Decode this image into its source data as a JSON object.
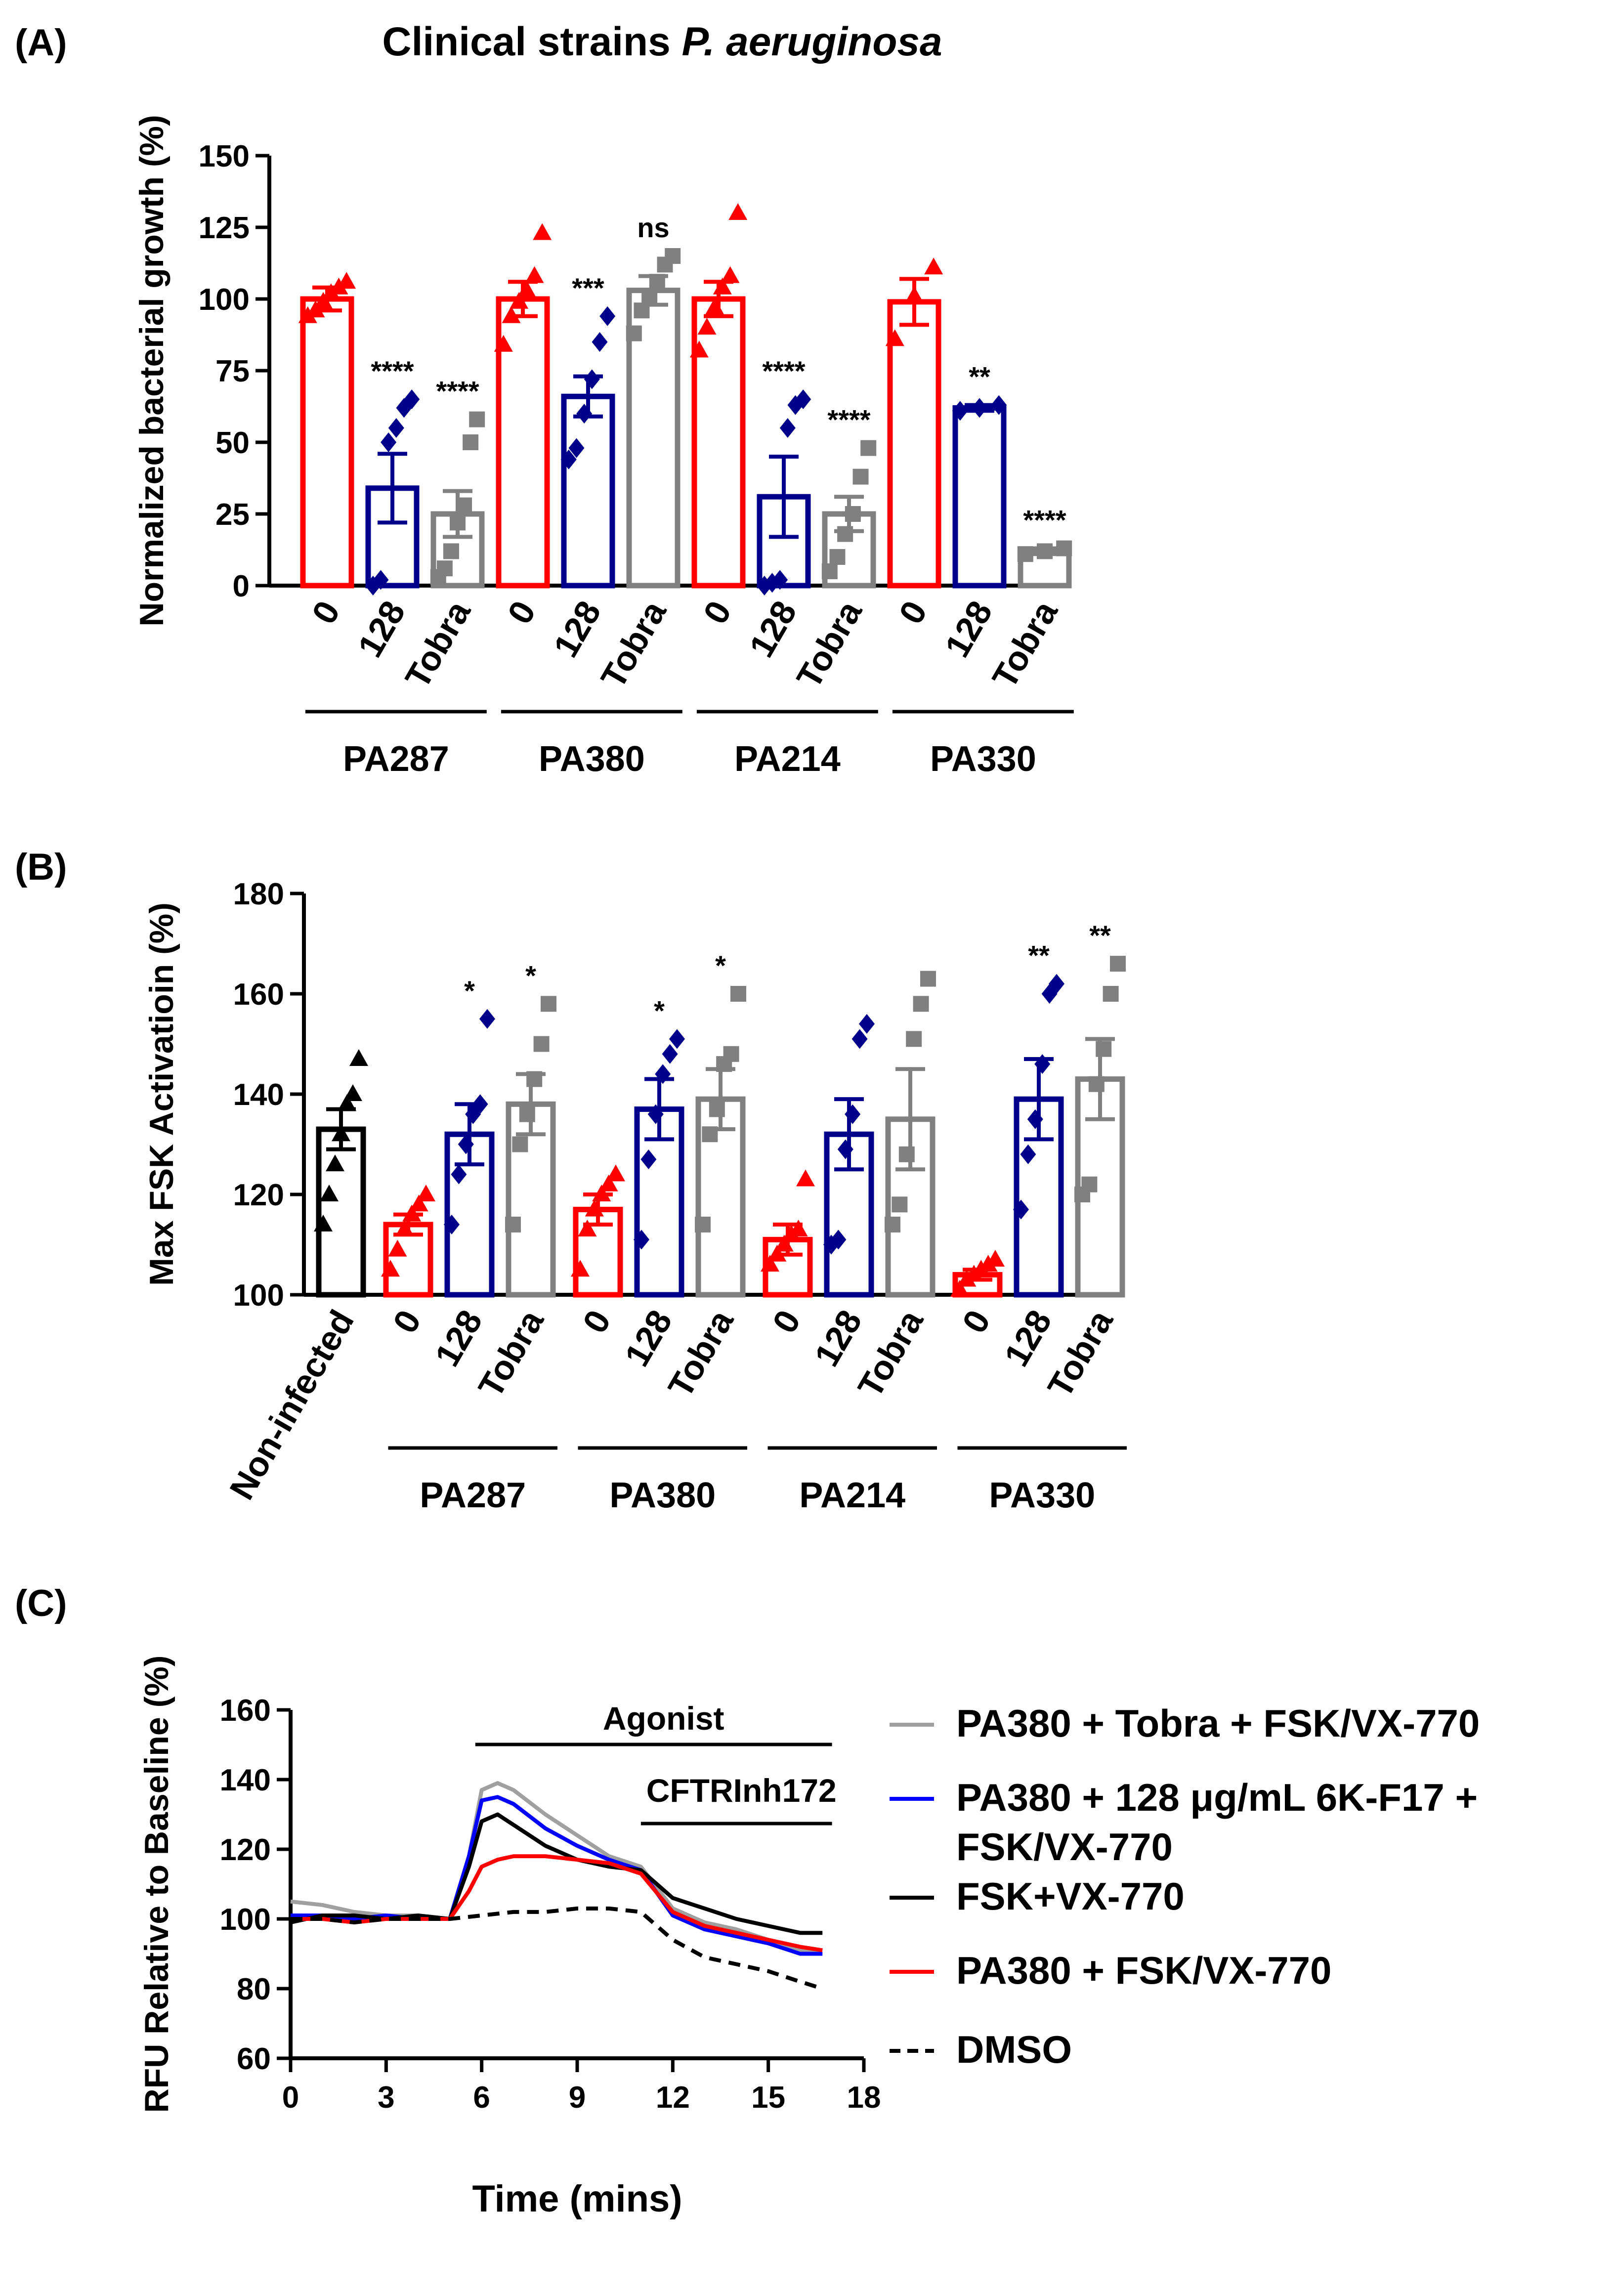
{
  "chart_data": [
    {
      "panel": "(A)",
      "type": "bar",
      "title_plain": "Clinical strains ",
      "title_italic": "P. aeruginosa",
      "ylabel": "Normalized bacterial growth (%)",
      "ylim": [
        0,
        150
      ],
      "yticks": [
        0,
        25,
        50,
        75,
        100,
        125,
        150
      ],
      "groups": [
        {
          "label": "PA287",
          "bars": [
            {
              "label": "0",
              "color": "#ff0000",
              "marker": "triangle",
              "mean": 100,
              "sem": 4,
              "points": [
                94,
                96,
                99,
                102,
                104,
                106
              ],
              "sig": ""
            },
            {
              "label": "128",
              "color": "#00008b",
              "marker": "diamond",
              "mean": 34,
              "sem": 12,
              "points": [
                0,
                2,
                50,
                55,
                62,
                65
              ],
              "sig": "****"
            },
            {
              "label": "Tobra",
              "color": "#808080",
              "marker": "square",
              "mean": 25,
              "sem": 8,
              "points": [
                3,
                6,
                12,
                22,
                28,
                50,
                58
              ],
              "sig": "****"
            }
          ]
        },
        {
          "label": "PA380",
          "bars": [
            {
              "label": "0",
              "color": "#ff0000",
              "marker": "triangle",
              "mean": 100,
              "sem": 6,
              "points": [
                84,
                94,
                99,
                103,
                108,
                123
              ],
              "sig": ""
            },
            {
              "label": "128",
              "color": "#00008b",
              "marker": "diamond",
              "mean": 66,
              "sem": 7,
              "points": [
                44,
                48,
                60,
                72,
                85,
                94
              ],
              "sig": "***"
            },
            {
              "label": "Tobra",
              "color": "#808080",
              "marker": "square",
              "mean": 103,
              "sem": 5,
              "points": [
                88,
                96,
                101,
                106,
                112,
                115
              ],
              "sig": "ns"
            }
          ]
        },
        {
          "label": "PA214",
          "bars": [
            {
              "label": "0",
              "color": "#ff0000",
              "marker": "triangle",
              "mean": 100,
              "sem": 6,
              "points": [
                82,
                90,
                97,
                104,
                108,
                130
              ],
              "sig": ""
            },
            {
              "label": "128",
              "color": "#00008b",
              "marker": "diamond",
              "mean": 31,
              "sem": 14,
              "points": [
                0,
                1,
                2,
                55,
                63,
                65
              ],
              "sig": "****"
            },
            {
              "label": "Tobra",
              "color": "#808080",
              "marker": "square",
              "mean": 25,
              "sem": 6,
              "points": [
                5,
                10,
                18,
                25,
                38,
                48
              ],
              "sig": "****"
            }
          ]
        },
        {
          "label": "PA330",
          "bars": [
            {
              "label": "0",
              "color": "#ff0000",
              "marker": "triangle",
              "mean": 99,
              "sem": 8,
              "points": [
                86,
                101,
                111
              ],
              "sig": ""
            },
            {
              "label": "128",
              "color": "#00008b",
              "marker": "diamond",
              "mean": 62,
              "sem": 1,
              "points": [
                61,
                62,
                63
              ],
              "sig": "**"
            },
            {
              "label": "Tobra",
              "color": "#808080",
              "marker": "square",
              "mean": 12,
              "sem": 1,
              "points": [
                11,
                12,
                13
              ],
              "sig": "****"
            }
          ]
        }
      ]
    },
    {
      "panel": "(B)",
      "type": "bar",
      "ylabel": "Max  FSK Activatioin (%)",
      "ylim": [
        100,
        180
      ],
      "yticks": [
        100,
        120,
        140,
        160,
        180
      ],
      "control": {
        "label": "Non-infected",
        "color": "#000000",
        "marker": "triangle",
        "mean": 133,
        "sem": 4,
        "points": [
          114,
          120,
          126,
          132,
          138,
          140,
          147
        ]
      },
      "groups": [
        {
          "label": "PA287",
          "bars": [
            {
              "label": "0",
              "color": "#ff0000",
              "marker": "triangle",
              "mean": 114,
              "sem": 2,
              "points": [
                105,
                109,
                113,
                116,
                118,
                120
              ],
              "sig": ""
            },
            {
              "label": "128",
              "color": "#00008b",
              "marker": "diamond",
              "mean": 132,
              "sem": 6,
              "points": [
                114,
                124,
                130,
                136,
                138,
                155
              ],
              "sig": "*"
            },
            {
              "label": "Tobra",
              "color": "#808080",
              "marker": "square",
              "mean": 138,
              "sem": 6,
              "points": [
                114,
                130,
                136,
                143,
                150,
                158
              ],
              "sig": "*"
            }
          ]
        },
        {
          "label": "PA380",
          "bars": [
            {
              "label": "0",
              "color": "#ff0000",
              "marker": "triangle",
              "mean": 117,
              "sem": 3,
              "points": [
                105,
                113,
                117,
                120,
                122,
                124
              ],
              "sig": ""
            },
            {
              "label": "128",
              "color": "#00008b",
              "marker": "diamond",
              "mean": 137,
              "sem": 6,
              "points": [
                111,
                127,
                136,
                144,
                148,
                151
              ],
              "sig": "*"
            },
            {
              "label": "Tobra",
              "color": "#808080",
              "marker": "square",
              "mean": 139,
              "sem": 6,
              "points": [
                114,
                132,
                137,
                146,
                148,
                160
              ],
              "sig": "*"
            }
          ]
        },
        {
          "label": "PA214",
          "bars": [
            {
              "label": "0",
              "color": "#ff0000",
              "marker": "triangle",
              "mean": 111,
              "sem": 3,
              "points": [
                106,
                108,
                110,
                112,
                113,
                123
              ],
              "sig": ""
            },
            {
              "label": "128",
              "color": "#00008b",
              "marker": "diamond",
              "mean": 132,
              "sem": 7,
              "points": [
                110,
                111,
                129,
                136,
                151,
                154
              ],
              "sig": ""
            },
            {
              "label": "Tobra",
              "color": "#808080",
              "marker": "square",
              "mean": 135,
              "sem": 10,
              "points": [
                114,
                118,
                128,
                151,
                158,
                163
              ],
              "sig": ""
            }
          ]
        },
        {
          "label": "PA330",
          "bars": [
            {
              "label": "0",
              "color": "#ff0000",
              "marker": "triangle",
              "mean": 104,
              "sem": 1,
              "points": [
                101,
                103,
                104,
                105,
                106,
                107
              ],
              "sig": ""
            },
            {
              "label": "128",
              "color": "#00008b",
              "marker": "diamond",
              "mean": 139,
              "sem": 8,
              "points": [
                117,
                128,
                135,
                146,
                160,
                162
              ],
              "sig": "**"
            },
            {
              "label": "Tobra",
              "color": "#808080",
              "marker": "square",
              "mean": 143,
              "sem": 8,
              "points": [
                120,
                122,
                142,
                149,
                160,
                166
              ],
              "sig": "**"
            }
          ]
        }
      ]
    },
    {
      "panel": "(C)",
      "type": "line",
      "xlabel": "Time (mins)",
      "ylabel": "RFU Relative to Baseline (%)",
      "xlim": [
        0,
        18
      ],
      "ylim": [
        60,
        160
      ],
      "xticks": [
        0,
        3,
        6,
        9,
        12,
        15,
        18
      ],
      "yticks": [
        60,
        80,
        100,
        120,
        140,
        160
      ],
      "annotations": [
        {
          "text": "Agonist",
          "x_start": 5.8,
          "x_end": 17
        },
        {
          "text": "CFTRInh172",
          "x_start": 11,
          "x_end": 17
        }
      ],
      "series": [
        {
          "name": "PA380 + Tobra + FSK/VX-770",
          "color": "#a0a0a0",
          "dash": false,
          "x": [
            0,
            1,
            2,
            3,
            4,
            5,
            5.6,
            6,
            6.5,
            7,
            8,
            9,
            10,
            11,
            12,
            13,
            14,
            15,
            16,
            16.7
          ],
          "y": [
            105,
            104,
            102,
            101,
            101,
            100,
            118,
            137,
            139,
            137,
            130,
            124,
            118,
            115,
            103,
            99,
            97,
            94,
            91,
            91
          ]
        },
        {
          "name": "PA380 + 128 μg/mL 6K-F17 + FSK/VX-770",
          "color": "#0000ff",
          "dash": false,
          "x": [
            0,
            1,
            2,
            3,
            4,
            5,
            5.6,
            6,
            6.5,
            7,
            8,
            9,
            10,
            11,
            12,
            13,
            14,
            15,
            16,
            16.7
          ],
          "y": [
            101,
            101,
            100,
            101,
            100,
            100,
            118,
            134,
            135,
            133,
            126,
            121,
            117,
            114,
            101,
            97,
            95,
            93,
            90,
            90
          ]
        },
        {
          "name": "FSK+VX-770",
          "color": "#000000",
          "dash": false,
          "x": [
            0,
            1,
            2,
            3,
            4,
            5,
            5.6,
            6,
            6.5,
            7,
            8,
            9,
            10,
            11,
            12,
            13,
            14,
            15,
            16,
            16.7
          ],
          "y": [
            99,
            101,
            101,
            100,
            101,
            100,
            115,
            128,
            130,
            127,
            121,
            117,
            115,
            114,
            106,
            103,
            100,
            98,
            96,
            96
          ]
        },
        {
          "name": "PA380 + FSK/VX-770",
          "color": "#ff0000",
          "dash": false,
          "x": [
            0,
            1,
            2,
            3,
            4,
            5,
            5.6,
            6,
            6.5,
            7,
            8,
            9,
            10,
            11,
            12,
            13,
            14,
            15,
            16,
            16.7
          ],
          "y": [
            100,
            100,
            99,
            100,
            100,
            100,
            108,
            115,
            117,
            118,
            118,
            117,
            116,
            113,
            102,
            98,
            96,
            94,
            92,
            91
          ]
        },
        {
          "name": "DMSO",
          "color": "#000000",
          "dash": true,
          "x": [
            0,
            1,
            2,
            3,
            4,
            5,
            6,
            7,
            8,
            9,
            10,
            11,
            12,
            13,
            14,
            15,
            16,
            16.7
          ],
          "y": [
            100,
            100,
            99,
            100,
            100,
            100,
            101,
            102,
            102,
            103,
            103,
            102,
            94,
            89,
            87,
            85,
            82,
            80
          ]
        }
      ]
    }
  ]
}
